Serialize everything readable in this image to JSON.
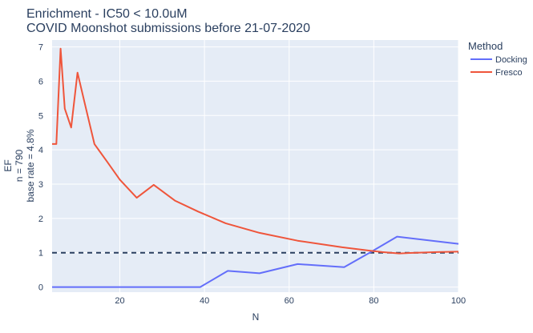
{
  "chart_data": {
    "type": "line",
    "title": "Enrichment - IC50 < 10.0uM",
    "subtitle": "COVID Moonshot submissions before 21-07-2020",
    "xlabel": "N",
    "ylabel_lines": [
      "EF",
      "n = 790",
      "base rate = 4.8%"
    ],
    "xlim": [
      4,
      100
    ],
    "ylim": [
      -0.15,
      7.2
    ],
    "xticks": [
      20,
      40,
      60,
      80,
      100
    ],
    "yticks": [
      0,
      1,
      2,
      3,
      4,
      5,
      6,
      7
    ],
    "grid": true,
    "legend_title": "Method",
    "legend_position": "top-right",
    "reference_line": {
      "y": 1,
      "style": "dashed",
      "color": "#2a3f5f"
    },
    "series": [
      {
        "name": "Docking",
        "color": "#636efa",
        "x": [
          4,
          10,
          20,
          30,
          39,
          45.5,
          53,
          62,
          73,
          79,
          85.5,
          100
        ],
        "y": [
          0,
          0,
          0,
          0,
          0,
          0.47,
          0.4,
          0.67,
          0.58,
          1.0,
          1.47,
          1.26
        ]
      },
      {
        "name": "Fresco",
        "color": "#ef553b",
        "x": [
          4,
          5,
          6,
          7,
          8.5,
          10,
          12,
          14,
          17,
          20,
          24,
          28,
          33,
          38.5,
          45,
          53,
          62,
          72.5,
          79,
          82,
          86,
          90,
          95,
          100
        ],
        "y": [
          4.17,
          4.17,
          6.95,
          5.2,
          4.65,
          6.25,
          5.2,
          4.17,
          3.65,
          3.13,
          2.6,
          2.98,
          2.52,
          2.2,
          1.86,
          1.58,
          1.35,
          1.16,
          1.06,
          1.02,
          0.98,
          1.0,
          1.02,
          1.03
        ]
      }
    ]
  }
}
